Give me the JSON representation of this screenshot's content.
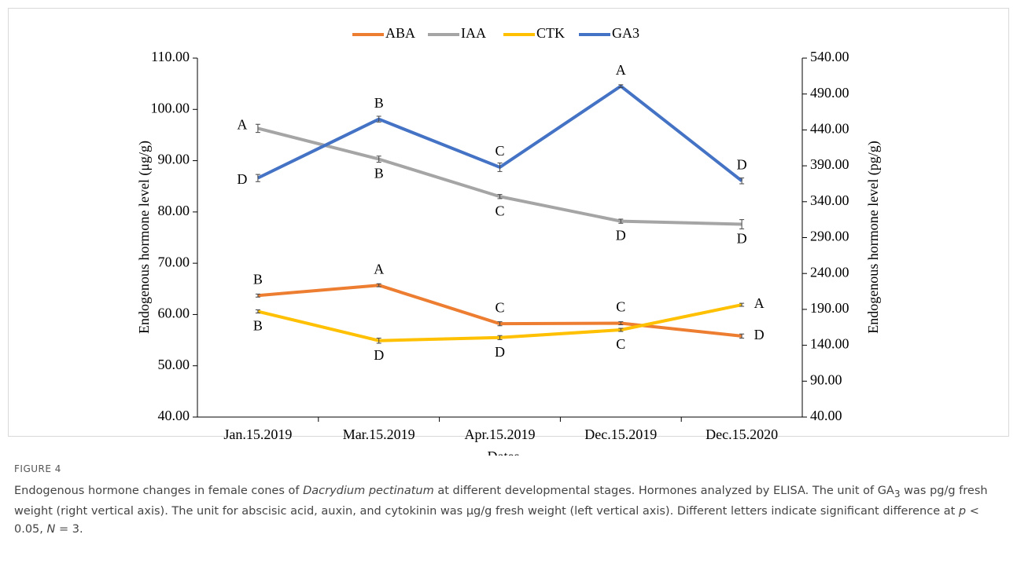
{
  "chart_data": {
    "type": "line",
    "categories": [
      "Jan.15.2019",
      "Mar.15.2019",
      "Apr.15.2019",
      "Dec.15.2019",
      "Dec.15.2020"
    ],
    "x_label": "Dates",
    "y_label": "Endogenous hormone level (μg/g)",
    "y2_label": "Endogenous hormone level (pg/g)",
    "ylim": [
      40,
      110
    ],
    "yticks": [
      {
        "value": 40,
        "label": "40.00"
      },
      {
        "value": 50,
        "label": "50.00"
      },
      {
        "value": 60,
        "label": "60.00"
      },
      {
        "value": 70,
        "label": "70.00"
      },
      {
        "value": 80,
        "label": "80.00"
      },
      {
        "value": 90,
        "label": "90.00"
      },
      {
        "value": 100,
        "label": "100.00"
      },
      {
        "value": 110,
        "label": "110.00"
      }
    ],
    "y2lim": [
      40,
      540
    ],
    "y2ticks": [
      {
        "value": 40,
        "label": "40.00"
      },
      {
        "value": 90,
        "label": "90.00"
      },
      {
        "value": 140,
        "label": "140.00"
      },
      {
        "value": 190,
        "label": "190.00"
      },
      {
        "value": 240,
        "label": "240.00"
      },
      {
        "value": 290,
        "label": "290.00"
      },
      {
        "value": 340,
        "label": "340.00"
      },
      {
        "value": 390,
        "label": "390.00"
      },
      {
        "value": 440,
        "label": "440.00"
      },
      {
        "value": 490,
        "label": "490.00"
      },
      {
        "value": 540,
        "label": "540.00"
      }
    ],
    "series": [
      {
        "name": "ABA",
        "color": "#ed7d31",
        "values": [
          63.7,
          65.7,
          58.2,
          58.3,
          55.8
        ],
        "errors": [
          0.3,
          0.3,
          0.4,
          0.3,
          0.4
        ],
        "labels": [
          "B",
          "A",
          "C",
          "C",
          "D"
        ]
      },
      {
        "name": "IAA",
        "color": "#a5a5a5",
        "values": [
          96.3,
          90.3,
          83.0,
          78.2,
          77.6
        ],
        "errors": [
          0.8,
          0.6,
          0.4,
          0.4,
          0.9
        ],
        "labels": [
          "A",
          "B",
          "C",
          "D",
          "D"
        ]
      },
      {
        "name": "CTK",
        "color": "#ffc000",
        "values": [
          60.6,
          54.9,
          55.5,
          57.0,
          61.9
        ],
        "errors": [
          0.3,
          0.5,
          0.4,
          0.3,
          0.3
        ],
        "labels": [
          "B",
          "D",
          "D",
          "C",
          "A"
        ]
      },
      {
        "name": "GA3",
        "color": "#4472c4",
        "axis": "y2",
        "values": [
          373,
          455,
          388,
          501,
          369
        ],
        "errors": [
          5,
          4,
          6,
          2,
          4
        ],
        "labels": [
          "D",
          "B",
          "C",
          "A",
          "D"
        ]
      }
    ]
  },
  "figure_label": "FIGURE 4",
  "caption": [
    "Endogenous hormone changes in female cones of ",
    "Dacrydium pectinatum",
    " at different developmental stages. Hormones analyzed by ELISA. The unit of GA",
    "3",
    " was pg/g fresh weight (right vertical axis). The unit for abscisic acid, auxin, and cytokinin was μg/g fresh weight (left vertical axis). Different letters indicate significant difference at ",
    "p",
    " < 0.05, ",
    "N",
    " = 3."
  ]
}
